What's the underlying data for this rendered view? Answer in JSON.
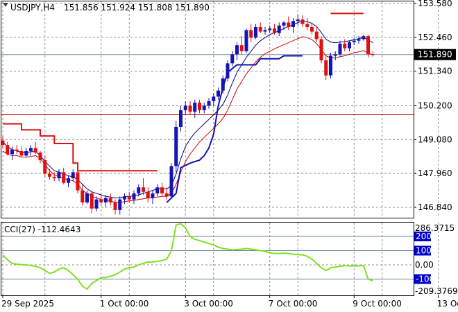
{
  "header": {
    "symbol": "USDJPY,H4",
    "ohlc": "151.856 151.924 151.808 151.890"
  },
  "indicator": {
    "label": "CCI(27) -112.4643",
    "levels": [
      "200",
      "100",
      "-100"
    ],
    "scale": [
      "286.3715",
      "0.00",
      "-209.3769"
    ]
  },
  "colors": {
    "bull": "#1414b4",
    "bear": "#e01010",
    "upper_band": "#000080",
    "lower_band": "#cc0000",
    "stop_high": "#e01010",
    "stop_low": "#1010b0",
    "cci": "#80e020",
    "level_line": "#0000cc",
    "grid": "#909090"
  },
  "chart_data": {
    "type": "candlestick",
    "price_ticks": [
      "153.580",
      "152.460",
      "151.340",
      "150.200",
      "149.080",
      "147.960",
      "146.840"
    ],
    "price_tick_values": [
      153.58,
      152.46,
      151.34,
      150.2,
      149.08,
      147.96,
      146.84
    ],
    "current_price": "151.890",
    "current_price_value": 151.89,
    "hline_red": 149.9,
    "date_labels": [
      "29 Sep 2025",
      "1 Oct 00:00",
      "3 Oct 00:00",
      "7 Oct 00:00",
      "9 Oct 00:00",
      "13 Oct 00:00"
    ],
    "date_label_bars": [
      0,
      21,
      39,
      57,
      75,
      93
    ],
    "candles": [
      [
        149.05,
        149.2,
        148.8,
        148.9
      ],
      [
        148.9,
        149.0,
        148.55,
        148.6
      ],
      [
        148.6,
        148.85,
        148.4,
        148.75
      ],
      [
        148.75,
        148.9,
        148.6,
        148.7
      ],
      [
        148.7,
        148.85,
        148.5,
        148.55
      ],
      [
        148.55,
        148.8,
        148.5,
        148.7
      ],
      [
        148.7,
        148.9,
        148.55,
        148.8
      ],
      [
        148.8,
        149.0,
        148.6,
        148.65
      ],
      [
        148.65,
        148.7,
        148.3,
        148.4
      ],
      [
        148.4,
        148.55,
        147.85,
        147.95
      ],
      [
        147.95,
        148.1,
        147.75,
        147.85
      ],
      [
        147.85,
        148.0,
        147.7,
        147.8
      ],
      [
        147.8,
        148.1,
        147.7,
        148.0
      ],
      [
        148.0,
        148.15,
        147.6,
        147.65
      ],
      [
        147.65,
        147.9,
        147.5,
        147.8
      ],
      [
        147.8,
        148.1,
        147.7,
        148.0
      ],
      [
        148.0,
        148.1,
        147.3,
        147.4
      ],
      [
        147.4,
        147.6,
        146.9,
        147.0
      ],
      [
        147.0,
        147.4,
        146.95,
        147.3
      ],
      [
        147.3,
        147.4,
        146.65,
        146.8
      ],
      [
        146.8,
        147.2,
        146.7,
        147.1
      ],
      [
        147.1,
        147.3,
        146.9,
        147.0
      ],
      [
        147.0,
        147.25,
        146.85,
        147.15
      ],
      [
        147.15,
        147.3,
        146.9,
        147.0
      ],
      [
        147.0,
        147.1,
        146.6,
        146.75
      ],
      [
        146.75,
        147.2,
        146.6,
        147.1
      ],
      [
        147.1,
        147.3,
        146.95,
        147.2
      ],
      [
        147.2,
        147.35,
        147.0,
        147.1
      ],
      [
        147.1,
        147.4,
        146.95,
        147.3
      ],
      [
        147.3,
        147.6,
        147.2,
        147.5
      ],
      [
        147.5,
        147.8,
        147.25,
        147.35
      ],
      [
        147.35,
        147.5,
        147.0,
        147.15
      ],
      [
        147.15,
        147.4,
        146.95,
        147.3
      ],
      [
        147.3,
        147.6,
        147.2,
        147.5
      ],
      [
        147.5,
        147.65,
        147.2,
        147.3
      ],
      [
        147.3,
        147.5,
        147.1,
        147.2
      ],
      [
        147.2,
        148.3,
        147.15,
        148.2
      ],
      [
        148.2,
        149.7,
        148.0,
        149.5
      ],
      [
        149.5,
        150.2,
        149.35,
        150.05
      ],
      [
        150.05,
        150.35,
        149.9,
        150.2
      ],
      [
        150.2,
        150.35,
        149.9,
        150.0
      ],
      [
        150.0,
        150.4,
        149.8,
        150.3
      ],
      [
        150.3,
        150.4,
        149.95,
        150.05
      ],
      [
        150.05,
        150.3,
        149.95,
        150.2
      ],
      [
        150.2,
        150.45,
        150.1,
        150.35
      ],
      [
        150.35,
        150.6,
        150.2,
        150.5
      ],
      [
        150.5,
        150.8,
        150.4,
        150.7
      ],
      [
        150.7,
        151.2,
        150.6,
        151.1
      ],
      [
        151.1,
        151.7,
        151.0,
        151.6
      ],
      [
        151.6,
        152.0,
        151.5,
        151.9
      ],
      [
        151.9,
        152.3,
        151.7,
        152.2
      ],
      [
        152.2,
        152.5,
        151.9,
        152.0
      ],
      [
        152.0,
        152.75,
        151.95,
        152.7
      ],
      [
        152.7,
        152.9,
        152.3,
        152.45
      ],
      [
        152.45,
        152.9,
        152.4,
        152.8
      ],
      [
        152.8,
        152.95,
        152.6,
        152.65
      ],
      [
        152.65,
        152.8,
        152.55,
        152.7
      ],
      [
        152.7,
        152.85,
        152.6,
        152.75
      ],
      [
        152.75,
        152.9,
        152.55,
        152.6
      ],
      [
        152.6,
        152.95,
        152.5,
        152.85
      ],
      [
        152.85,
        153.0,
        152.7,
        152.95
      ],
      [
        152.95,
        153.15,
        152.7,
        152.8
      ],
      [
        152.8,
        153.1,
        152.6,
        153.0
      ],
      [
        153.0,
        153.2,
        152.85,
        153.05
      ],
      [
        153.05,
        153.2,
        152.8,
        152.9
      ],
      [
        152.9,
        153.1,
        152.7,
        152.8
      ],
      [
        152.8,
        152.95,
        152.55,
        152.65
      ],
      [
        152.65,
        152.8,
        152.3,
        152.4
      ],
      [
        152.4,
        152.5,
        151.6,
        151.7
      ],
      [
        151.7,
        151.85,
        151.05,
        151.2
      ],
      [
        151.2,
        151.95,
        151.1,
        151.85
      ],
      [
        151.85,
        152.0,
        151.7,
        151.9
      ],
      [
        151.9,
        152.35,
        151.85,
        152.25
      ],
      [
        152.25,
        152.4,
        152.0,
        152.1
      ],
      [
        152.1,
        152.35,
        152.0,
        152.3
      ],
      [
        152.3,
        152.45,
        152.2,
        152.35
      ],
      [
        152.35,
        152.5,
        152.25,
        152.4
      ],
      [
        152.4,
        152.55,
        152.35,
        152.5
      ],
      [
        152.5,
        152.55,
        151.8,
        151.9
      ],
      [
        151.9,
        152.0,
        151.82,
        151.89
      ]
    ],
    "upper_band": [
      149.0,
      148.85,
      148.75,
      148.7,
      148.65,
      148.65,
      148.68,
      148.68,
      148.55,
      148.35,
      148.2,
      148.05,
      148.0,
      147.95,
      147.88,
      147.85,
      147.75,
      147.6,
      147.45,
      147.35,
      147.3,
      147.25,
      147.2,
      147.18,
      147.15,
      147.15,
      147.2,
      147.2,
      147.22,
      147.25,
      147.3,
      147.35,
      147.4,
      147.45,
      147.45,
      147.45,
      147.55,
      147.95,
      148.45,
      148.85,
      149.1,
      149.3,
      149.45,
      149.6,
      149.75,
      149.9,
      150.05,
      150.25,
      150.55,
      150.95,
      151.3,
      151.55,
      151.8,
      152.0,
      152.2,
      152.35,
      152.45,
      152.55,
      152.62,
      152.68,
      152.75,
      152.82,
      152.88,
      152.95,
      153.0,
      152.98,
      152.92,
      152.82,
      152.62,
      152.4,
      152.3,
      152.28,
      152.3,
      152.32,
      152.35,
      152.38,
      152.42,
      152.45,
      152.38,
      152.28
    ],
    "lower_band": [
      148.7,
      148.6,
      148.55,
      148.55,
      148.5,
      148.5,
      148.52,
      148.55,
      148.45,
      148.25,
      148.05,
      147.92,
      147.85,
      147.8,
      147.75,
      147.72,
      147.6,
      147.4,
      147.3,
      147.2,
      147.15,
      147.1,
      147.08,
      147.05,
      147.0,
      147.0,
      147.03,
      147.05,
      147.07,
      147.1,
      147.12,
      147.15,
      147.15,
      147.18,
      147.2,
      147.2,
      147.3,
      147.6,
      148.0,
      148.35,
      148.6,
      148.8,
      149.0,
      149.15,
      149.3,
      149.45,
      149.6,
      149.78,
      150.05,
      150.4,
      150.75,
      151.0,
      151.25,
      151.45,
      151.65,
      151.8,
      151.92,
      152.0,
      152.08,
      152.15,
      152.22,
      152.28,
      152.35,
      152.42,
      152.48,
      152.45,
      152.38,
      152.25,
      152.05,
      151.85,
      151.78,
      151.78,
      151.82,
      151.85,
      151.9,
      151.95,
      151.98,
      152.02,
      151.95,
      151.88
    ],
    "stop_high_segments": [
      [
        [
          0,
          149.6
        ],
        [
          4,
          149.6
        ],
        [
          4,
          149.4
        ],
        [
          8,
          149.4
        ],
        [
          8,
          149.2
        ],
        [
          11,
          149.2
        ],
        [
          11,
          148.95
        ],
        [
          15,
          148.95
        ],
        [
          15,
          148.3
        ],
        [
          16,
          148.3
        ],
        [
          16,
          148.05
        ],
        [
          33,
          148.05
        ]
      ],
      [
        [
          70,
          153.25
        ],
        [
          77,
          153.25
        ]
      ]
    ],
    "stop_low_segments": [
      [
        [
          35,
          147.0
        ],
        [
          37,
          147.3
        ],
        [
          38,
          148.15
        ],
        [
          40,
          148.3
        ],
        [
          41,
          148.35
        ],
        [
          42,
          148.4
        ],
        [
          43,
          148.55
        ],
        [
          44,
          148.8
        ],
        [
          45,
          149.25
        ],
        [
          46,
          150.2
        ],
        [
          47,
          150.8
        ],
        [
          48,
          151.3
        ],
        [
          50,
          151.55
        ],
        [
          54,
          151.55
        ],
        [
          55,
          151.75
        ],
        [
          59,
          151.75
        ],
        [
          60,
          151.85
        ],
        [
          64,
          151.85
        ]
      ]
    ],
    "cci": [
      70,
      35,
      10,
      5,
      2,
      0,
      -5,
      -10,
      -20,
      -40,
      -60,
      -50,
      -30,
      -20,
      -40,
      -70,
      -100,
      -150,
      -170,
      -130,
      -110,
      -90,
      -90,
      -80,
      -70,
      -50,
      -30,
      -20,
      -15,
      0,
      10,
      20,
      20,
      25,
      30,
      40,
      100,
      280,
      290,
      260,
      200,
      180,
      170,
      160,
      150,
      140,
      125,
      115,
      110,
      105,
      108,
      110,
      115,
      110,
      105,
      100,
      95,
      85,
      80,
      80,
      82,
      80,
      75,
      72,
      70,
      60,
      40,
      10,
      -20,
      -40,
      -20,
      -15,
      -10,
      -5,
      -8,
      -8,
      -7,
      -5,
      -100,
      -112
    ]
  }
}
